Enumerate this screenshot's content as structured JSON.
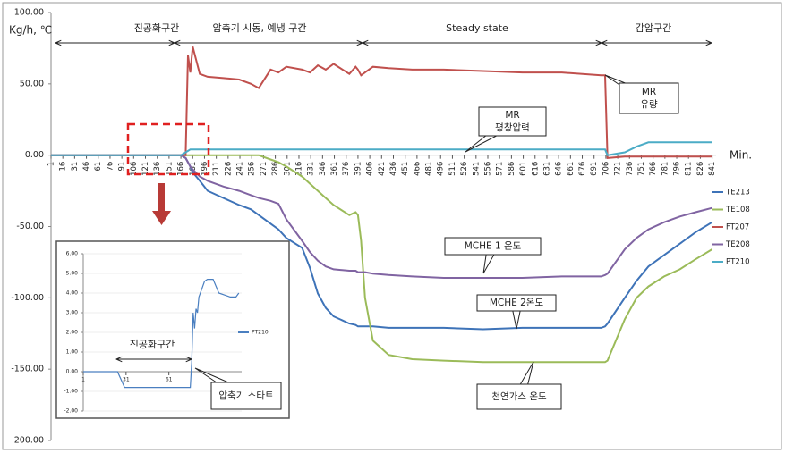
{
  "chart_data": [
    {
      "type": "line",
      "y_label": "Kg/h, ℃",
      "x_label": "Min.",
      "phases": [
        "진공화구간",
        "압축기 시동, 예냉 구간",
        "Steady state",
        "감압구간"
      ],
      "annotations": [
        "MR",
        "유량",
        "MR",
        "평창압력",
        "MCHE 1 온도",
        "MCHE 2온도",
        "천연가스 온도"
      ],
      "x": [
        1,
        100,
        166,
        172,
        175,
        178,
        181,
        190,
        200,
        220,
        240,
        255,
        265,
        280,
        290,
        300,
        320,
        330,
        340,
        350,
        360,
        380,
        388,
        391,
        395,
        400,
        410,
        430,
        460,
        500,
        550,
        600,
        650,
        700,
        705,
        708,
        730,
        745,
        760,
        780,
        800,
        820,
        841
      ],
      "series": [
        {
          "name": "TE213",
          "color": "#3e73b8",
          "values": [
            0,
            0,
            0,
            -2,
            -5,
            -8,
            -12,
            -18,
            -25,
            -30,
            -35,
            -38,
            -42,
            -48,
            -52,
            -58,
            -65,
            -79,
            -97,
            -107,
            -113,
            -118,
            -119,
            -120,
            -120,
            -120,
            -120,
            -121,
            -121,
            -121,
            -122,
            -121,
            -121,
            -121,
            -120,
            -118,
            -100,
            -88,
            -78,
            -70,
            -62,
            -54,
            -47
          ]
        },
        {
          "name": "TE108",
          "color": "#9bbb59",
          "values": [
            0,
            0,
            0,
            0,
            0,
            0,
            0,
            0,
            0,
            0,
            0,
            0,
            0,
            -3,
            -5,
            -8,
            -15,
            -20,
            -25,
            -30,
            -35,
            -42,
            -40,
            -42,
            -60,
            -100,
            -130,
            -140,
            -143,
            -144,
            -145,
            -145,
            -145,
            -145,
            -145,
            -144,
            -115,
            -100,
            -92,
            -85,
            -80,
            -73,
            -66
          ]
        },
        {
          "name": "FT207",
          "color": "#c0504d",
          "values": [
            0,
            0,
            0,
            0,
            70,
            58,
            76,
            57,
            55,
            54,
            53,
            50,
            47,
            60,
            58,
            62,
            60,
            58,
            63,
            60,
            64,
            57,
            62,
            60,
            56,
            58,
            62,
            61,
            60,
            60,
            59,
            58,
            58,
            56,
            56,
            -2,
            -1,
            -1,
            -1,
            -1,
            -1,
            -1,
            -1
          ]
        },
        {
          "name": "TE208",
          "color": "#8064a2",
          "values": [
            0,
            0,
            0,
            -2,
            -5,
            -8,
            -10,
            -15,
            -18,
            -22,
            -25,
            -28,
            -30,
            -32,
            -34,
            -45,
            -60,
            -68,
            -74,
            -78,
            -80,
            -81,
            -81,
            -82,
            -82,
            -82,
            -83,
            -84,
            -85,
            -86,
            -86,
            -86,
            -85,
            -85,
            -84,
            -83,
            -66,
            -58,
            -52,
            -47,
            -43,
            -40,
            -37
          ]
        },
        {
          "name": "PT210",
          "color": "#4bacc6",
          "values": [
            0,
            0,
            0,
            2,
            3,
            4,
            4,
            4,
            4,
            4,
            4,
            4,
            4,
            4,
            4,
            4,
            4,
            4,
            4,
            4,
            4,
            4,
            4,
            4,
            4,
            4,
            4,
            4,
            4,
            4,
            4,
            4,
            4,
            4,
            4,
            0,
            2,
            6,
            9,
            9,
            9,
            9,
            9
          ]
        }
      ],
      "xlim": [
        1,
        846
      ],
      "xticks": [
        1,
        16,
        31,
        46,
        61,
        76,
        91,
        106,
        121,
        136,
        151,
        166,
        181,
        196,
        211,
        226,
        241,
        256,
        271,
        286,
        301,
        316,
        331,
        346,
        361,
        376,
        391,
        406,
        421,
        436,
        451,
        466,
        481,
        496,
        511,
        526,
        541,
        556,
        571,
        586,
        601,
        616,
        631,
        646,
        661,
        676,
        691,
        706,
        721,
        736,
        751,
        766,
        781,
        796,
        811,
        826,
        841
      ],
      "ylim": [
        -200,
        100
      ],
      "yticks": [
        {
          "value": 100,
          "label": "100.00"
        },
        {
          "value": 50,
          "label": "50.00"
        },
        {
          "value": 0,
          "label": "0.00"
        },
        {
          "value": -50,
          "label": "-50.00"
        },
        {
          "value": -100,
          "label": "-100.00"
        },
        {
          "value": -150,
          "label": "-150.00"
        },
        {
          "value": -200,
          "label": "-200.00"
        }
      ],
      "grid": false,
      "legend": "right"
    },
    {
      "type": "line",
      "annotations": [
        "진공화구간",
        "압축기 스타트"
      ],
      "x": [
        1,
        25,
        30,
        60,
        76,
        77,
        78,
        79,
        80,
        81,
        82,
        84,
        86,
        88,
        92,
        96,
        100,
        104,
        108,
        110
      ],
      "series": [
        {
          "name": "PT210",
          "color": "#4a7fc0",
          "values": [
            0,
            0,
            -0.8,
            -0.8,
            -0.8,
            0.5,
            3.0,
            2.2,
            3.2,
            3.0,
            3.8,
            4.2,
            4.6,
            4.7,
            4.7,
            4.0,
            3.9,
            3.8,
            3.8,
            4.0
          ]
        }
      ],
      "xlim": [
        1,
        112
      ],
      "xticks": [
        1,
        31,
        61
      ],
      "ylim": [
        -2,
        6
      ],
      "yticks": [
        {
          "value": 6,
          "label": "6.00"
        },
        {
          "value": 5,
          "label": "5.00"
        },
        {
          "value": 4,
          "label": "4.00"
        },
        {
          "value": 3,
          "label": "3.00"
        },
        {
          "value": 2,
          "label": "2.00"
        },
        {
          "value": 1,
          "label": "1.00"
        },
        {
          "value": 0,
          "label": "0.00"
        },
        {
          "value": -1,
          "label": "-1.00"
        },
        {
          "value": -2,
          "label": "-2.00"
        }
      ],
      "grid": true,
      "legend": "right"
    }
  ]
}
